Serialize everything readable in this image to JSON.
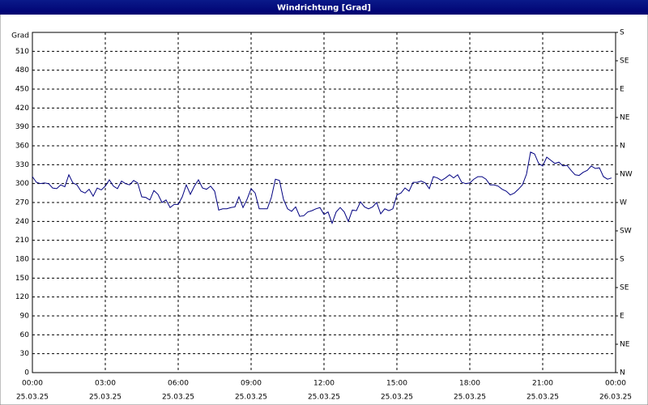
{
  "chart_data": {
    "type": "line",
    "title": "Windrichtung [Grad]",
    "y_label": "Grad",
    "color": "#000080",
    "grid": true,
    "xlim": [
      0,
      1440
    ],
    "ylim": [
      0,
      540
    ],
    "y2lim": [
      0,
      540
    ],
    "xticks": [
      {
        "value": 0,
        "label": "00:00"
      },
      {
        "value": 180,
        "label": "03:00"
      },
      {
        "value": 360,
        "label": "06:00"
      },
      {
        "value": 540,
        "label": "09:00"
      },
      {
        "value": 720,
        "label": "12:00"
      },
      {
        "value": 900,
        "label": "15:00"
      },
      {
        "value": 1080,
        "label": "18:00"
      },
      {
        "value": 1260,
        "label": "21:00"
      },
      {
        "value": 1440,
        "label": "00:00"
      }
    ],
    "xtick_dates": [
      "25.03.25",
      "25.03.25",
      "25.03.25",
      "25.03.25",
      "25.03.25",
      "25.03.25",
      "25.03.25",
      "25.03.25",
      "26.03.25"
    ],
    "yticks": [
      0,
      30,
      60,
      90,
      120,
      150,
      180,
      210,
      240,
      270,
      300,
      330,
      360,
      390,
      420,
      450,
      480,
      510
    ],
    "y2ticks": [
      {
        "value": 540,
        "label": "S"
      },
      {
        "value": 495,
        "label": "SE"
      },
      {
        "value": 450,
        "label": "E"
      },
      {
        "value": 405,
        "label": "NE"
      },
      {
        "value": 360,
        "label": "N"
      },
      {
        "value": 315,
        "label": "NW"
      },
      {
        "value": 270,
        "label": "W"
      },
      {
        "value": 225,
        "label": "SW"
      },
      {
        "value": 180,
        "label": "S"
      },
      {
        "value": 135,
        "label": "SE"
      },
      {
        "value": 90,
        "label": "E"
      },
      {
        "value": 45,
        "label": "NE"
      },
      {
        "value": 0,
        "label": "N"
      }
    ],
    "x": [
      0,
      10,
      20,
      30,
      40,
      50,
      60,
      70,
      80,
      90,
      100,
      110,
      120,
      130,
      140,
      150,
      160,
      170,
      180,
      190,
      200,
      210,
      220,
      230,
      240,
      250,
      260,
      270,
      280,
      290,
      300,
      310,
      320,
      330,
      340,
      350,
      360,
      370,
      380,
      390,
      400,
      410,
      420,
      430,
      440,
      450,
      460,
      470,
      480,
      490,
      500,
      510,
      520,
      530,
      540,
      550,
      560,
      570,
      580,
      590,
      600,
      610,
      620,
      630,
      640,
      650,
      660,
      670,
      680,
      690,
      700,
      710,
      720,
      730,
      740,
      750,
      760,
      770,
      780,
      790,
      800,
      810,
      820,
      830,
      840,
      850,
      860,
      870,
      880,
      890,
      900,
      910,
      920,
      930,
      940,
      950,
      960,
      970,
      980,
      990,
      1000,
      1010,
      1020,
      1030,
      1040,
      1050,
      1060,
      1070,
      1080,
      1090,
      1100,
      1110,
      1120,
      1130,
      1140,
      1150,
      1160,
      1170,
      1180,
      1190,
      1200,
      1210,
      1220,
      1230,
      1240,
      1250,
      1260,
      1270,
      1280,
      1290,
      1300,
      1310,
      1320,
      1330,
      1340,
      1350,
      1360,
      1370,
      1380,
      1390,
      1400,
      1410,
      1420,
      1430
    ],
    "values": [
      311,
      302,
      300,
      301,
      300,
      293,
      292,
      298,
      295,
      314,
      301,
      298,
      288,
      285,
      291,
      280,
      293,
      290,
      296,
      306,
      296,
      292,
      304,
      300,
      298,
      305,
      301,
      279,
      278,
      274,
      289,
      283,
      270,
      274,
      262,
      267,
      267,
      279,
      298,
      283,
      296,
      306,
      293,
      291,
      296,
      288,
      258,
      260,
      260,
      262,
      263,
      279,
      262,
      275,
      292,
      285,
      260,
      260,
      260,
      278,
      307,
      305,
      275,
      260,
      256,
      263,
      248,
      249,
      255,
      257,
      260,
      262,
      251,
      255,
      237,
      255,
      262,
      255,
      240,
      258,
      257,
      271,
      263,
      260,
      263,
      270,
      252,
      260,
      257,
      260,
      282,
      285,
      293,
      288,
      302,
      302,
      304,
      301,
      292,
      311,
      309,
      305,
      309,
      314,
      309,
      314,
      302,
      300,
      301,
      307,
      311,
      311,
      307,
      298,
      298,
      296,
      291,
      288,
      282,
      285,
      291,
      298,
      315,
      350,
      347,
      332,
      328,
      342,
      337,
      332,
      334,
      328,
      329,
      321,
      314,
      313,
      318,
      321,
      328,
      324,
      325,
      311,
      307,
      309
    ]
  }
}
